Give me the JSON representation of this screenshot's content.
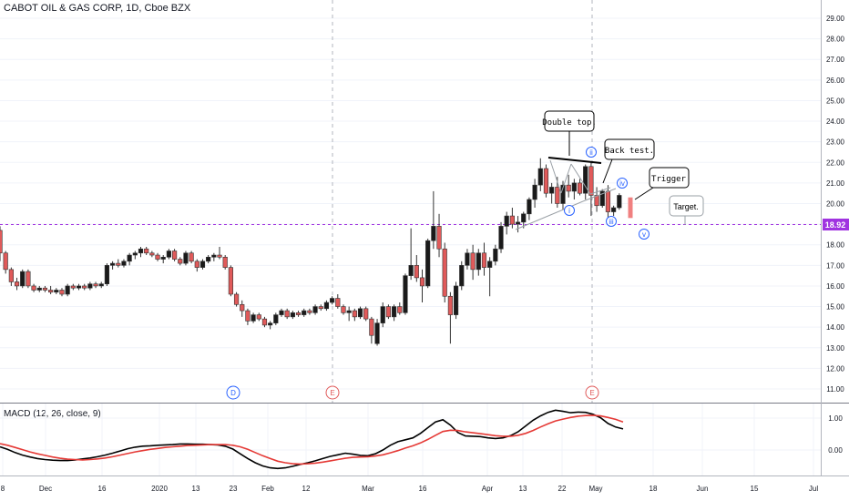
{
  "header": {
    "title": "CABOT OIL & GAS CORP, 1D, Cboe BZX"
  },
  "macd": {
    "title": "MACD (12, 26, close, 9)"
  },
  "price_tag": "18.92",
  "colors": {
    "up": "#1a1a1a",
    "down": "#e05a5a",
    "macd": "#000000",
    "signal": "#e53935",
    "hline": "#a033e0",
    "axis": "#787b86",
    "grid": "#f0f3fa",
    "accent": "#2962ff"
  },
  "annotations": {
    "double_top": "Double top.",
    "back_test": "Back test.",
    "trigger": "Trigger",
    "target": "Target.",
    "wave_labels": [
      "i",
      "ii",
      "iii",
      "iv",
      "v"
    ]
  },
  "event_markers": [
    "D",
    "E",
    "E"
  ],
  "chart_data": {
    "type": "candlestick",
    "title": "CABOT OIL & GAS CORP, 1D, Cboe BZX",
    "price_axis": {
      "ylim": [
        10.5,
        29.5
      ],
      "ticks": [
        "29.00",
        "28.00",
        "27.00",
        "26.00",
        "25.00",
        "24.00",
        "23.00",
        "22.00",
        "21.00",
        "20.00",
        "19.00",
        "18.00",
        "17.00",
        "16.00",
        "15.00",
        "14.00",
        "13.00",
        "12.00",
        "11.00"
      ]
    },
    "x_ticks": [
      "8",
      "Dec",
      "16",
      "2020",
      "13",
      "23",
      "Feb",
      "12",
      "Mar",
      "16",
      "Apr",
      "13",
      "22",
      "May",
      "18",
      "Jun",
      "15",
      "Jul"
    ],
    "horizontal_line": 18.92,
    "candles": [
      [
        18.7,
        18.9,
        17.2,
        17.6
      ],
      [
        17.6,
        17.7,
        16.6,
        16.8
      ],
      [
        16.8,
        16.9,
        16.0,
        16.2
      ],
      [
        16.2,
        16.4,
        15.8,
        16.0
      ],
      [
        16.0,
        16.8,
        15.9,
        16.7
      ],
      [
        16.7,
        16.8,
        15.9,
        16.0
      ],
      [
        16.0,
        16.1,
        15.7,
        15.8
      ],
      [
        15.8,
        16.0,
        15.7,
        15.9
      ],
      [
        15.9,
        16.0,
        15.7,
        15.8
      ],
      [
        15.8,
        16.0,
        15.6,
        15.7
      ],
      [
        15.7,
        15.9,
        15.6,
        15.8
      ],
      [
        15.8,
        15.9,
        15.5,
        15.6
      ],
      [
        15.6,
        16.1,
        15.5,
        16.0
      ],
      [
        16.0,
        16.1,
        15.8,
        15.9
      ],
      [
        15.9,
        16.1,
        15.8,
        16.0
      ],
      [
        16.0,
        16.1,
        15.8,
        15.9
      ],
      [
        15.9,
        16.2,
        15.8,
        16.1
      ],
      [
        16.1,
        16.2,
        15.9,
        16.0
      ],
      [
        16.0,
        16.2,
        15.9,
        16.1
      ],
      [
        16.1,
        17.1,
        16.0,
        17.0
      ],
      [
        17.0,
        17.2,
        16.8,
        17.1
      ],
      [
        17.1,
        17.3,
        16.9,
        17.0
      ],
      [
        17.0,
        17.3,
        16.9,
        17.2
      ],
      [
        17.2,
        17.6,
        17.0,
        17.5
      ],
      [
        17.5,
        17.7,
        17.3,
        17.6
      ],
      [
        17.6,
        17.9,
        17.4,
        17.8
      ],
      [
        17.8,
        17.9,
        17.5,
        17.6
      ],
      [
        17.6,
        17.7,
        17.4,
        17.5
      ],
      [
        17.5,
        17.6,
        17.2,
        17.3
      ],
      [
        17.3,
        17.5,
        17.1,
        17.4
      ],
      [
        17.4,
        17.8,
        17.3,
        17.7
      ],
      [
        17.7,
        17.8,
        17.2,
        17.3
      ],
      [
        17.3,
        17.4,
        17.0,
        17.1
      ],
      [
        17.1,
        17.7,
        17.0,
        17.6
      ],
      [
        17.6,
        17.7,
        17.1,
        17.2
      ],
      [
        17.2,
        17.3,
        16.7,
        16.9
      ],
      [
        16.9,
        17.3,
        16.8,
        17.2
      ],
      [
        17.2,
        17.5,
        17.1,
        17.4
      ],
      [
        17.4,
        17.6,
        17.2,
        17.5
      ],
      [
        17.5,
        17.9,
        17.3,
        17.4
      ],
      [
        17.4,
        17.5,
        16.8,
        16.9
      ],
      [
        16.9,
        17.0,
        15.5,
        15.6
      ],
      [
        15.6,
        15.7,
        15.0,
        15.1
      ],
      [
        15.1,
        15.3,
        14.5,
        14.8
      ],
      [
        14.8,
        14.9,
        14.1,
        14.3
      ],
      [
        14.3,
        14.7,
        14.2,
        14.6
      ],
      [
        14.6,
        14.7,
        14.3,
        14.4
      ],
      [
        14.4,
        14.5,
        14.0,
        14.1
      ],
      [
        14.1,
        14.3,
        13.9,
        14.2
      ],
      [
        14.2,
        14.7,
        14.1,
        14.6
      ],
      [
        14.6,
        14.9,
        14.5,
        14.8
      ],
      [
        14.8,
        14.9,
        14.4,
        14.5
      ],
      [
        14.5,
        14.8,
        14.4,
        14.7
      ],
      [
        14.7,
        14.8,
        14.5,
        14.6
      ],
      [
        14.6,
        14.9,
        14.5,
        14.8
      ],
      [
        14.8,
        14.9,
        14.6,
        14.7
      ],
      [
        14.7,
        15.1,
        14.6,
        15.0
      ],
      [
        15.0,
        15.1,
        14.8,
        14.9
      ],
      [
        14.9,
        15.3,
        14.8,
        15.2
      ],
      [
        15.2,
        15.5,
        15.1,
        15.4
      ],
      [
        15.4,
        15.6,
        14.9,
        15.0
      ],
      [
        15.0,
        15.1,
        14.6,
        14.7
      ],
      [
        14.7,
        15.0,
        14.3,
        14.8
      ],
      [
        14.8,
        14.9,
        14.3,
        14.5
      ],
      [
        14.5,
        15.0,
        14.4,
        14.9
      ],
      [
        14.9,
        15.0,
        14.3,
        14.4
      ],
      [
        14.4,
        14.5,
        13.2,
        13.6
      ],
      [
        13.2,
        14.4,
        13.1,
        14.2
      ],
      [
        14.2,
        15.2,
        14.0,
        15.0
      ],
      [
        15.0,
        15.1,
        14.4,
        14.5
      ],
      [
        14.5,
        15.1,
        14.3,
        15.0
      ],
      [
        15.0,
        15.2,
        14.6,
        14.7
      ],
      [
        14.7,
        16.6,
        14.6,
        16.5
      ],
      [
        16.5,
        18.8,
        16.3,
        17.0
      ],
      [
        17.0,
        17.5,
        16.2,
        16.4
      ],
      [
        16.4,
        16.8,
        15.2,
        16.0
      ],
      [
        16.0,
        18.3,
        15.9,
        18.2
      ],
      [
        18.2,
        20.6,
        17.8,
        18.9
      ],
      [
        18.9,
        19.5,
        17.4,
        17.8
      ],
      [
        17.8,
        18.1,
        15.2,
        15.5
      ],
      [
        15.5,
        15.7,
        13.2,
        14.6
      ],
      [
        14.6,
        16.2,
        14.4,
        16.0
      ],
      [
        16.0,
        17.2,
        15.8,
        17.0
      ],
      [
        17.0,
        17.8,
        16.8,
        17.6
      ],
      [
        17.6,
        18.0,
        16.3,
        16.8
      ],
      [
        16.8,
        17.8,
        16.5,
        17.6
      ],
      [
        17.6,
        18.1,
        16.5,
        16.9
      ],
      [
        16.9,
        17.4,
        15.5,
        17.2
      ],
      [
        17.2,
        18.0,
        17.0,
        17.8
      ],
      [
        17.8,
        19.1,
        17.6,
        18.9
      ],
      [
        18.9,
        19.6,
        18.5,
        19.4
      ],
      [
        19.4,
        19.8,
        18.8,
        19.0
      ],
      [
        19.0,
        19.4,
        18.6,
        19.1
      ],
      [
        19.1,
        19.6,
        18.8,
        19.5
      ],
      [
        19.5,
        20.3,
        19.2,
        20.2
      ],
      [
        20.2,
        21.2,
        19.8,
        20.9
      ],
      [
        20.9,
        22.2,
        20.6,
        21.7
      ],
      [
        21.7,
        21.9,
        20.3,
        20.5
      ],
      [
        20.5,
        21.0,
        20.0,
        20.8
      ],
      [
        20.8,
        21.3,
        19.8,
        20.0
      ],
      [
        20.0,
        21.1,
        19.7,
        20.9
      ],
      [
        20.9,
        21.4,
        20.3,
        20.6
      ],
      [
        20.6,
        21.2,
        20.2,
        21.0
      ],
      [
        21.0,
        21.2,
        20.4,
        20.5
      ],
      [
        20.5,
        21.9,
        20.2,
        21.8
      ],
      [
        21.8,
        22.0,
        19.4,
        20.4
      ],
      [
        20.4,
        20.8,
        19.6,
        19.9
      ],
      [
        19.9,
        20.7,
        19.8,
        20.6
      ],
      [
        20.6,
        20.9,
        19.3,
        19.6
      ],
      [
        19.6,
        19.9,
        19.4,
        19.8
      ],
      [
        19.8,
        20.5,
        19.7,
        20.4
      ]
    ],
    "projection_candle": [
      20.1,
      20.3,
      19.3,
      19.5
    ],
    "macd_axis": {
      "ylim": [
        -0.9,
        1.45
      ],
      "ticks": [
        "1.00",
        "0.00"
      ]
    },
    "macd_series": [
      {
        "name": "MACD",
        "values": [
          0.1,
          0.02,
          -0.08,
          -0.16,
          -0.22,
          -0.27,
          -0.3,
          -0.32,
          -0.33,
          -0.33,
          -0.31,
          -0.28,
          -0.25,
          -0.21,
          -0.16,
          -0.1,
          -0.03,
          0.04,
          0.09,
          0.12,
          0.13,
          0.15,
          0.16,
          0.17,
          0.19,
          0.19,
          0.18,
          0.18,
          0.17,
          0.16,
          0.12,
          0.03,
          -0.12,
          -0.27,
          -0.4,
          -0.5,
          -0.56,
          -0.58,
          -0.56,
          -0.51,
          -0.45,
          -0.4,
          -0.34,
          -0.27,
          -0.2,
          -0.15,
          -0.1,
          -0.13,
          -0.17,
          -0.18,
          -0.12,
          0.0,
          0.15,
          0.26,
          0.32,
          0.38,
          0.52,
          0.7,
          0.88,
          0.95,
          0.78,
          0.55,
          0.44,
          0.43,
          0.42,
          0.38,
          0.36,
          0.38,
          0.45,
          0.57,
          0.75,
          0.93,
          1.07,
          1.18,
          1.25,
          1.21,
          1.17,
          1.19,
          1.18,
          1.12,
          1.01,
          0.83,
          0.72,
          0.66
        ]
      },
      {
        "name": "Signal",
        "values": [
          0.2,
          0.15,
          0.08,
          0.01,
          -0.06,
          -0.12,
          -0.17,
          -0.22,
          -0.26,
          -0.29,
          -0.3,
          -0.31,
          -0.3,
          -0.28,
          -0.25,
          -0.21,
          -0.16,
          -0.11,
          -0.06,
          -0.02,
          0.02,
          0.05,
          0.08,
          0.1,
          0.12,
          0.14,
          0.15,
          0.16,
          0.17,
          0.17,
          0.17,
          0.15,
          0.1,
          0.02,
          -0.08,
          -0.18,
          -0.27,
          -0.35,
          -0.4,
          -0.43,
          -0.44,
          -0.43,
          -0.41,
          -0.38,
          -0.34,
          -0.3,
          -0.26,
          -0.23,
          -0.22,
          -0.21,
          -0.19,
          -0.15,
          -0.09,
          -0.02,
          0.06,
          0.13,
          0.22,
          0.33,
          0.46,
          0.58,
          0.62,
          0.61,
          0.57,
          0.54,
          0.51,
          0.48,
          0.45,
          0.43,
          0.43,
          0.46,
          0.52,
          0.61,
          0.72,
          0.82,
          0.91,
          0.97,
          1.02,
          1.06,
          1.08,
          1.09,
          1.07,
          1.02,
          0.96,
          0.88
        ]
      }
    ]
  }
}
